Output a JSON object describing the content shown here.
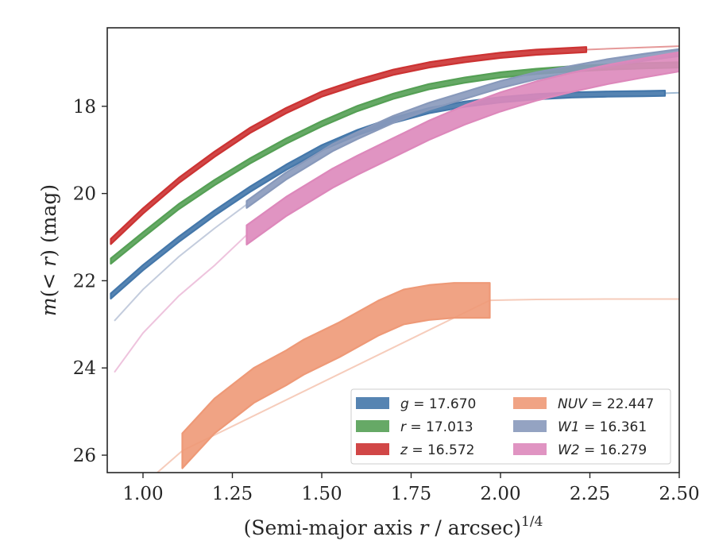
{
  "chart_data": {
    "type": "line",
    "xlabel": "(Semi-major axis r / arcsec)",
    "xlabel_parts": {
      "pre": "(Semi-major axis ",
      "var": "r",
      "post": " / arcsec)",
      "exp": "1/4"
    },
    "ylabel_parts": {
      "pre": "m",
      "mid": "(< ",
      "var": "r",
      "post": ") (mag)"
    },
    "xlim": [
      0.9,
      2.5
    ],
    "ylim": [
      26.4,
      16.2
    ],
    "y_inverted": true,
    "x_ticks": [
      1.0,
      1.25,
      1.5,
      1.75,
      2.0,
      2.25,
      2.5
    ],
    "x_tick_labels": [
      "1.00",
      "1.25",
      "1.50",
      "1.75",
      "2.00",
      "2.25",
      "2.50"
    ],
    "y_ticks": [
      18,
      20,
      22,
      24,
      26
    ],
    "y_tick_labels": [
      "18",
      "20",
      "22",
      "24",
      "26"
    ],
    "grid": false,
    "legend_placement": "lower-right",
    "series": [
      {
        "name": "g = 17.670",
        "legend": {
          "var": "g",
          "value": "17.670",
          "sans_var": true
        },
        "color": "#4477aa",
        "band": 0.06,
        "x": [
          0.91,
          1.0,
          1.1,
          1.2,
          1.3,
          1.4,
          1.5,
          1.6,
          1.7,
          1.8,
          1.9,
          2.0,
          2.1,
          2.2,
          2.3,
          2.4,
          2.46
        ],
        "y": [
          22.35,
          21.7,
          21.05,
          20.45,
          19.9,
          19.4,
          18.95,
          18.6,
          18.32,
          18.1,
          17.95,
          17.85,
          17.78,
          17.74,
          17.72,
          17.71,
          17.7
        ],
        "faded_x": [
          2.46,
          2.5
        ],
        "faded_y": [
          17.7,
          17.69
        ]
      },
      {
        "name": "r = 17.013",
        "legend": {
          "var": "r",
          "value": "17.013"
        },
        "color": "#55a055",
        "band": 0.06,
        "x": [
          0.91,
          1.0,
          1.1,
          1.2,
          1.3,
          1.4,
          1.5,
          1.6,
          1.7,
          1.8,
          1.9,
          2.0,
          2.1,
          2.2,
          2.3,
          2.4,
          2.5
        ],
        "y": [
          21.55,
          20.95,
          20.3,
          19.75,
          19.25,
          18.8,
          18.4,
          18.05,
          17.77,
          17.55,
          17.4,
          17.28,
          17.2,
          17.14,
          17.1,
          17.07,
          17.05
        ],
        "faded_x": [],
        "faded_y": []
      },
      {
        "name": "z = 16.572",
        "legend": {
          "var": "z",
          "value": "16.572"
        },
        "color": "#cc3333",
        "band": 0.06,
        "x": [
          0.91,
          1.0,
          1.1,
          1.2,
          1.3,
          1.4,
          1.5,
          1.6,
          1.7,
          1.8,
          1.9,
          2.0,
          2.1,
          2.24
        ],
        "y": [
          21.1,
          20.4,
          19.7,
          19.1,
          18.55,
          18.1,
          17.72,
          17.45,
          17.22,
          17.05,
          16.93,
          16.83,
          16.76,
          16.7
        ],
        "faded_x": [
          2.24,
          2.3,
          2.4,
          2.5
        ],
        "faded_y": [
          16.7,
          16.68,
          16.65,
          16.62
        ]
      },
      {
        "name": "NUV = 22.447",
        "legend": {
          "var": "NUV",
          "value": "22.447"
        },
        "color": "#ee9977",
        "band": 0.4,
        "x": [
          1.11,
          1.2,
          1.31,
          1.4,
          1.45,
          1.55,
          1.66,
          1.73,
          1.8,
          1.87,
          1.97
        ],
        "y": [
          25.9,
          25.1,
          24.4,
          24.0,
          23.75,
          23.35,
          22.85,
          22.6,
          22.5,
          22.45,
          22.45
        ],
        "faded_x": [
          1.04,
          1.11,
          1.97,
          2.1,
          2.3,
          2.5
        ],
        "faded_y": [
          26.4,
          25.9,
          22.45,
          22.43,
          22.42,
          22.42
        ]
      },
      {
        "name": "W1 = 16.361",
        "legend": {
          "var": "W1",
          "value": "16.361"
        },
        "color": "#8899bb",
        "band": 0.08,
        "x": [
          1.29,
          1.4,
          1.53,
          1.6,
          1.7,
          1.8,
          1.9,
          2.0,
          2.1,
          2.2,
          2.3,
          2.4,
          2.5
        ],
        "y": [
          20.25,
          19.6,
          18.95,
          18.67,
          18.3,
          18.0,
          17.75,
          17.5,
          17.3,
          17.15,
          17.0,
          16.88,
          16.77
        ],
        "faded_x": [
          0.92,
          1.0,
          1.1,
          1.2,
          1.29
        ],
        "faded_y": [
          22.92,
          22.2,
          21.45,
          20.8,
          20.25
        ]
      },
      {
        "name": "W2 = 16.279",
        "legend": {
          "var": "W2",
          "value": "16.279"
        },
        "color": "#dd88bb",
        "band": 0.22,
        "x": [
          1.29,
          1.4,
          1.53,
          1.6,
          1.7,
          1.8,
          1.9,
          2.0,
          2.1,
          2.2,
          2.3,
          2.4,
          2.5
        ],
        "y": [
          20.95,
          20.3,
          19.65,
          19.35,
          18.95,
          18.55,
          18.2,
          17.9,
          17.65,
          17.45,
          17.27,
          17.12,
          16.98
        ],
        "faded_x": [
          0.92,
          1.0,
          1.1,
          1.2,
          1.29
        ],
        "faded_y": [
          24.1,
          23.2,
          22.35,
          21.65,
          20.95
        ]
      }
    ],
    "legend_columns": [
      [
        "0",
        "1",
        "2"
      ],
      [
        "3",
        "4",
        "5"
      ]
    ]
  }
}
